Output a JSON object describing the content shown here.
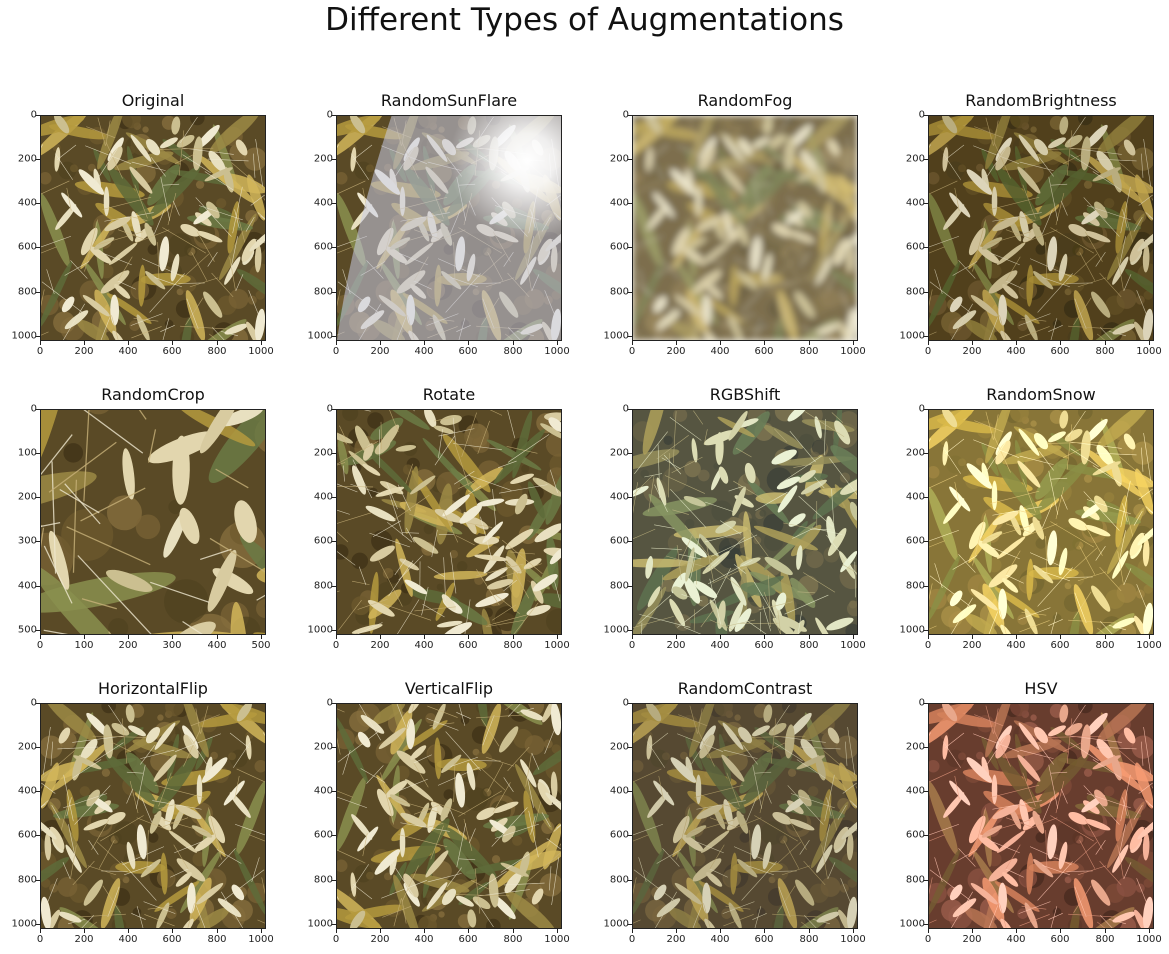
{
  "figure": {
    "title": "Different Types of Augmentations"
  },
  "panels": [
    {
      "title": "Original",
      "x_ticks": [
        "0",
        "200",
        "400",
        "600",
        "800",
        "1000"
      ],
      "y_ticks": [
        "0",
        "200",
        "400",
        "600",
        "800",
        "1000"
      ],
      "effect": "original"
    },
    {
      "title": "RandomSunFlare",
      "x_ticks": [
        "0",
        "200",
        "400",
        "600",
        "800",
        "1000"
      ],
      "y_ticks": [
        "0",
        "200",
        "400",
        "600",
        "800",
        "1000"
      ],
      "effect": "sunflare"
    },
    {
      "title": "RandomFog",
      "x_ticks": [
        "0",
        "200",
        "400",
        "600",
        "800",
        "1000"
      ],
      "y_ticks": [
        "0",
        "200",
        "400",
        "600",
        "800",
        "1000"
      ],
      "effect": "fog"
    },
    {
      "title": "RandomBrightness",
      "x_ticks": [
        "0",
        "200",
        "400",
        "600",
        "800",
        "1000"
      ],
      "y_ticks": [
        "0",
        "200",
        "400",
        "600",
        "800",
        "1000"
      ],
      "effect": "brightness"
    },
    {
      "title": "RandomCrop",
      "x_ticks": [
        "0",
        "100",
        "200",
        "300",
        "400",
        "500"
      ],
      "y_ticks": [
        "0",
        "100",
        "200",
        "300",
        "400",
        "500"
      ],
      "effect": "crop"
    },
    {
      "title": "Rotate",
      "x_ticks": [
        "0",
        "200",
        "400",
        "600",
        "800",
        "1000"
      ],
      "y_ticks": [
        "0",
        "200",
        "400",
        "600",
        "800",
        "1000"
      ],
      "effect": "rotate"
    },
    {
      "title": "RGBShift",
      "x_ticks": [
        "0",
        "200",
        "400",
        "600",
        "800",
        "1000"
      ],
      "y_ticks": [
        "0",
        "200",
        "400",
        "600",
        "800",
        "1000"
      ],
      "effect": "rgbshift"
    },
    {
      "title": "RandomSnow",
      "x_ticks": [
        "0",
        "200",
        "400",
        "600",
        "800",
        "1000"
      ],
      "y_ticks": [
        "0",
        "200",
        "400",
        "600",
        "800",
        "1000"
      ],
      "effect": "snow"
    },
    {
      "title": "HorizontalFlip",
      "x_ticks": [
        "0",
        "200",
        "400",
        "600",
        "800",
        "1000"
      ],
      "y_ticks": [
        "0",
        "200",
        "400",
        "600",
        "800",
        "1000"
      ],
      "effect": "hflip"
    },
    {
      "title": "VerticalFlip",
      "x_ticks": [
        "0",
        "200",
        "400",
        "600",
        "800",
        "1000"
      ],
      "y_ticks": [
        "0",
        "200",
        "400",
        "600",
        "800",
        "1000"
      ],
      "effect": "vflip"
    },
    {
      "title": "RandomContrast",
      "x_ticks": [
        "0",
        "200",
        "400",
        "600",
        "800",
        "1000"
      ],
      "y_ticks": [
        "0",
        "200",
        "400",
        "600",
        "800",
        "1000"
      ],
      "effect": "contrast"
    },
    {
      "title": "HSV",
      "x_ticks": [
        "0",
        "200",
        "400",
        "600",
        "800",
        "1000"
      ],
      "y_ticks": [
        "0",
        "200",
        "400",
        "600",
        "800",
        "1000"
      ],
      "effect": "hsv"
    }
  ],
  "palette": {
    "straw": "#c9b27a",
    "dark_soil": "#4a3a1c",
    "leaf_green": "#6b7a45",
    "golden": "#d9b24a"
  }
}
